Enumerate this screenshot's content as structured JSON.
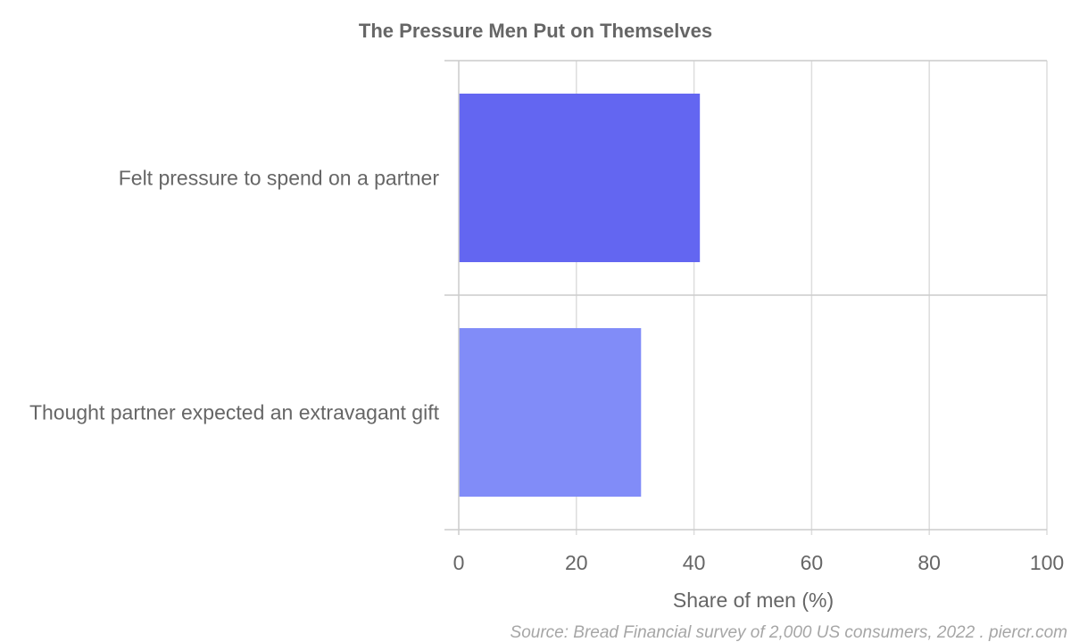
{
  "chart_data": {
    "type": "bar",
    "orientation": "horizontal",
    "title": "The Pressure Men Put on Themselves",
    "categories": [
      "Felt pressure to spend on a partner",
      "Thought partner expected an extravagant gift"
    ],
    "values": [
      41,
      31
    ],
    "bar_colors": [
      "#6366f1",
      "#818cf8"
    ],
    "xlabel": "Share of men (%)",
    "ylabel": "",
    "xlim": [
      0,
      100
    ],
    "xticks": [
      "0",
      "20",
      "40",
      "60",
      "80",
      "100"
    ],
    "grid": true,
    "legend": "none",
    "source": "Source: Bread Financial survey of 2,000 US consumers, 2022 . piercr.com"
  }
}
